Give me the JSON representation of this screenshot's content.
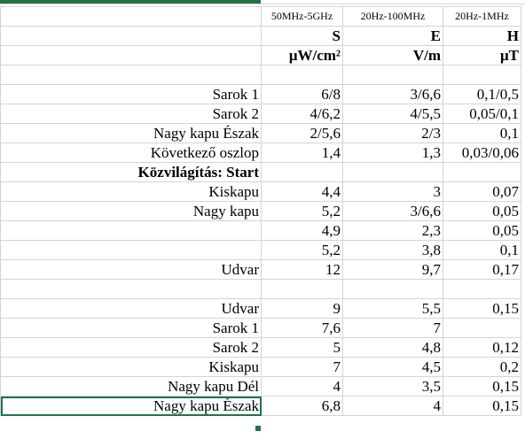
{
  "header": {
    "freq": [
      "",
      "50MHz-5GHz",
      "20Hz-100MHz",
      "20Hz-1MHz"
    ],
    "symbol": [
      "",
      "S",
      "E",
      "H"
    ],
    "unit": [
      "",
      "μW/cm²",
      "V/m",
      "μT"
    ]
  },
  "rows": [
    [
      "",
      "",
      "",
      ""
    ],
    [
      "Sarok 1",
      "6/8",
      "3/6,6",
      "0,1/0,5"
    ],
    [
      "Sarok 2",
      "4/6,2",
      "4/5,5",
      "0,05/0,1"
    ],
    [
      "Nagy kapu Észak",
      "2/5,6",
      "2/3",
      "0,1"
    ],
    [
      "Következő oszlop",
      "1,4",
      "1,3",
      "0,03/0,06"
    ],
    [
      "Közvilágítás: Start",
      "",
      "",
      ""
    ],
    [
      "Kiskapu",
      "4,4",
      "3",
      "0,07"
    ],
    [
      "Nagy kapu",
      "5,2",
      "3/6,6",
      "0,05"
    ],
    [
      "",
      "4,9",
      "2,3",
      "0,05"
    ],
    [
      "",
      "5,2",
      "3,8",
      "0,1"
    ],
    [
      "Udvar",
      "12",
      "9,7",
      "0,17"
    ],
    [
      "",
      "",
      "",
      ""
    ],
    [
      "Udvar",
      "9",
      "5,5",
      "0,15"
    ],
    [
      "Sarok 1",
      "7,6",
      "7",
      ""
    ],
    [
      "Sarok 2",
      "5",
      "4,8",
      "0,12"
    ],
    [
      "Kiskapu",
      "7",
      "4,5",
      "0,2"
    ],
    [
      "Nagy kapu Dél",
      "4",
      "3,5",
      "0,15"
    ],
    [
      "Nagy kapu Észak",
      "6,8",
      "4",
      "0,15"
    ]
  ]
}
